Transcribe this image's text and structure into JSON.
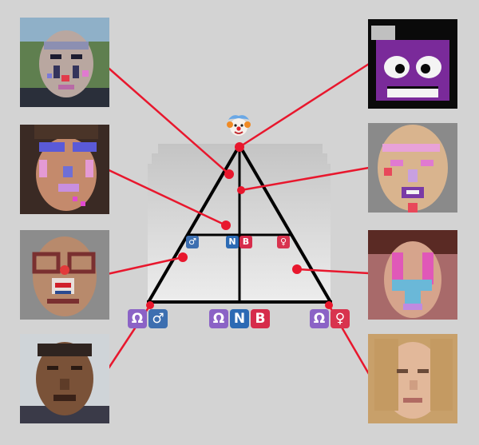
{
  "diagram": {
    "apex_icon": "clown-face-icon",
    "vertex_labels": {
      "left": [
        "Ω",
        "♂"
      ],
      "center": [
        "Ω",
        "N",
        "B"
      ],
      "right": [
        "Ω",
        "♀"
      ]
    },
    "midline_labels": {
      "left": [
        "♂"
      ],
      "center": [
        "N",
        "B"
      ],
      "right": [
        "♀"
      ]
    },
    "colors": {
      "background": "#d3d3d3",
      "triangle_line": "#000000",
      "connector": "#e8172d",
      "omega": "#8b63c6",
      "male": "#3d6fb0",
      "nonbinary_n": "#2c6ab4",
      "nonbinary_b": "#d62c4b",
      "female": "#d8334e"
    }
  },
  "portraits": {
    "left": [
      {
        "id": "face-l1",
        "style": "tattooed-face"
      },
      {
        "id": "face-l2",
        "style": "painted-face"
      },
      {
        "id": "face-l3",
        "style": "clown-makeup"
      },
      {
        "id": "face-l4",
        "style": "plain-face"
      }
    ],
    "right": [
      {
        "id": "face-r1",
        "style": "cartoon-face"
      },
      {
        "id": "face-r2",
        "style": "pink-makeup"
      },
      {
        "id": "face-r3",
        "style": "pink-makeup"
      },
      {
        "id": "face-r4",
        "style": "plain-face"
      }
    ]
  }
}
